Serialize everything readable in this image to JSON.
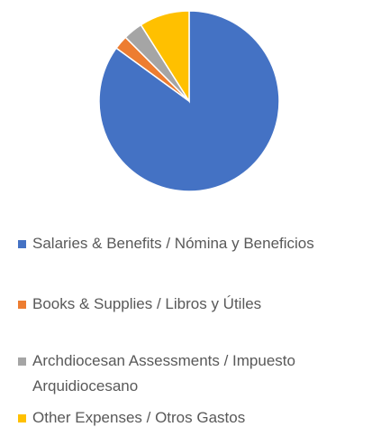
{
  "chart_data": {
    "type": "pie",
    "categories": [
      "Salaries & Benefits / Nómina y Beneficios",
      "Books & Supplies / Libros y Útiles",
      "Archdiocesan Assessments / Impuesto Arquidiocesano",
      "Other Expenses / Otros Gastos"
    ],
    "values": [
      85,
      2.5,
      3.5,
      9
    ],
    "colors": [
      "#4472c4",
      "#ed7d31",
      "#a5a5a5",
      "#ffc000"
    ],
    "legend": "bottom"
  }
}
